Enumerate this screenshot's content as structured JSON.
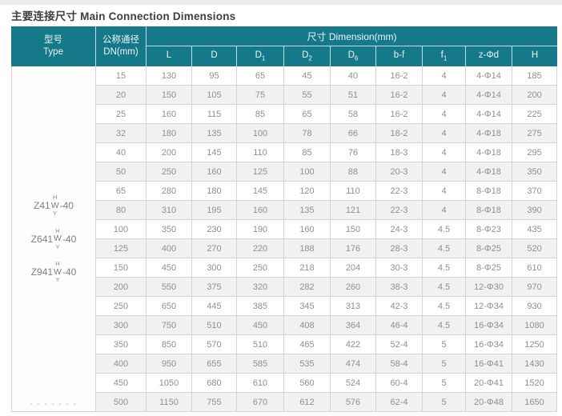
{
  "page": {
    "title": "主要连接尺寸 Main Connection Dimensions"
  },
  "colors": {
    "header_teal": "#16798a",
    "row_alt_gray": "#f1f1f1",
    "grid_border": "#d4d4d4",
    "body_text": "#8f8f8f",
    "title_text": "#3f3f3f"
  },
  "table": {
    "header": {
      "type_label_zh": "型号",
      "type_label_en": "Type",
      "dn_label_zh": "公称通径",
      "dn_label_en": "DN(mm)",
      "dimension_group_label": "尺寸 Dimension(mm)",
      "columns": [
        {
          "base": "L",
          "sub": ""
        },
        {
          "base": "D",
          "sub": ""
        },
        {
          "base": "D",
          "sub": "1"
        },
        {
          "base": "D",
          "sub": "2"
        },
        {
          "base": "D",
          "sub": "6"
        },
        {
          "base": "b-f",
          "sub": ""
        },
        {
          "base": "f",
          "sub": "1"
        },
        {
          "base": "z-Φd",
          "sub": ""
        },
        {
          "base": "H",
          "sub": ""
        }
      ]
    },
    "type_models": [
      {
        "prefix": "Z41",
        "top": "H",
        "mid": "W",
        "bottom": "Y",
        "suffix": "-40"
      },
      {
        "prefix": "Z641",
        "top": "H",
        "mid": "W",
        "bottom": "Y",
        "suffix": "-40"
      },
      {
        "prefix": "Z941",
        "top": "H",
        "mid": "W",
        "bottom": "Y",
        "suffix": "-40"
      }
    ],
    "type_footer_dashes": "- - - - - - -",
    "rows": [
      {
        "dn": "15",
        "values": [
          "130",
          "95",
          "65",
          "45",
          "40",
          "16-2",
          "4",
          "4-Φ14",
          "185"
        ]
      },
      {
        "dn": "20",
        "values": [
          "150",
          "105",
          "75",
          "55",
          "51",
          "16-2",
          "4",
          "4-Φ14",
          "200"
        ]
      },
      {
        "dn": "25",
        "values": [
          "160",
          "115",
          "85",
          "65",
          "58",
          "16-2",
          "4",
          "4-Φ14",
          "225"
        ]
      },
      {
        "dn": "32",
        "values": [
          "180",
          "135",
          "100",
          "78",
          "66",
          "18-2",
          "4",
          "4-Φ18",
          "275"
        ]
      },
      {
        "dn": "40",
        "values": [
          "200",
          "145",
          "110",
          "85",
          "76",
          "18-3",
          "4",
          "4-Φ18",
          "295"
        ]
      },
      {
        "dn": "50",
        "values": [
          "250",
          "160",
          "125",
          "100",
          "88",
          "20-3",
          "4",
          "4-Φ18",
          "350"
        ]
      },
      {
        "dn": "65",
        "values": [
          "280",
          "180",
          "145",
          "120",
          "110",
          "22-3",
          "4",
          "8-Φ18",
          "370"
        ]
      },
      {
        "dn": "80",
        "values": [
          "310",
          "195",
          "160",
          "135",
          "121",
          "22-3",
          "4",
          "8-Φ18",
          "390"
        ]
      },
      {
        "dn": "100",
        "values": [
          "350",
          "230",
          "190",
          "160",
          "150",
          "24-3",
          "4.5",
          "8-Φ23",
          "435"
        ]
      },
      {
        "dn": "125",
        "values": [
          "400",
          "270",
          "220",
          "188",
          "176",
          "28-3",
          "4.5",
          "8-Φ25",
          "520"
        ]
      },
      {
        "dn": "150",
        "values": [
          "450",
          "300",
          "250",
          "218",
          "204",
          "30-3",
          "4.5",
          "8-Φ25",
          "610"
        ]
      },
      {
        "dn": "200",
        "values": [
          "550",
          "375",
          "320",
          "282",
          "260",
          "38-3",
          "4.5",
          "12-Φ30",
          "970"
        ]
      },
      {
        "dn": "250",
        "values": [
          "650",
          "445",
          "385",
          "345",
          "313",
          "42-3",
          "4.5",
          "12-Φ34",
          "930"
        ]
      },
      {
        "dn": "300",
        "values": [
          "750",
          "510",
          "450",
          "408",
          "364",
          "46-4",
          "4.5",
          "16-Φ34",
          "1080"
        ]
      },
      {
        "dn": "350",
        "values": [
          "850",
          "570",
          "510",
          "465",
          "422",
          "52-4",
          "5",
          "16-Φ34",
          "1250"
        ]
      },
      {
        "dn": "400",
        "values": [
          "950",
          "655",
          "585",
          "535",
          "474",
          "58-4",
          "5",
          "16-Φ41",
          "1430"
        ]
      },
      {
        "dn": "450",
        "values": [
          "1050",
          "680",
          "610",
          "560",
          "524",
          "60-4",
          "5",
          "20-Φ41",
          "1520"
        ]
      },
      {
        "dn": "500",
        "values": [
          "1150",
          "755",
          "670",
          "612",
          "576",
          "62-4",
          "5",
          "20-Φ48",
          "1650"
        ]
      }
    ]
  }
}
